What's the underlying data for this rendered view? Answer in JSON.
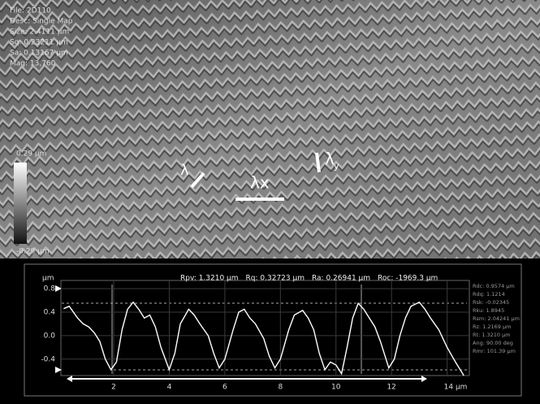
{
  "image": {
    "info_lines": [
      "File: 2D110",
      "Desc: Single Map",
      "Size: 2.4111 µm",
      "Sq: 0.23211 µm",
      "Sa: 0.13167 µm",
      "Mag: 13,760"
    ],
    "colorbar_max": "0.29 µm",
    "colorbar_min": "-0.29 µm",
    "annotations": {
      "lambda": "λ",
      "lambda_x": "λx",
      "lambda_y": "λ",
      "lambda_y_sub": "y"
    }
  },
  "chart_data": {
    "type": "line",
    "y_unit": "µm",
    "header": [
      "Rpv: 1.3210 µm",
      "Rq: 0.32723 µm",
      "Ra: 0.26941 µm",
      "Roc: -1969.3 µm"
    ],
    "stats": [
      "Rdc: 0.9574 µm",
      "Rdq: 1.1214",
      "Rsk: -0.02345",
      "Rku: 1.8945",
      "Rsm: 2.04241 µm",
      "Rz: 1.2169 µm",
      "Rt: 1.3210 µm",
      "Ang: 90.00 deg",
      "Rmr: 101.39 µm"
    ],
    "x": [
      0.2,
      0.4,
      0.7,
      0.9,
      1.1,
      1.3,
      1.5,
      1.7,
      1.9,
      2.1,
      2.3,
      2.5,
      2.7,
      2.9,
      3.1,
      3.3,
      3.5,
      3.7,
      4.0,
      4.2,
      4.4,
      4.7,
      4.9,
      5.1,
      5.4,
      5.6,
      5.8,
      6.0,
      6.3,
      6.5,
      6.7,
      6.9,
      7.1,
      7.4,
      7.6,
      7.8,
      8.0,
      8.3,
      8.5,
      8.8,
      9.0,
      9.2,
      9.4,
      9.6,
      9.8,
      10.0,
      10.2,
      10.4,
      10.6,
      10.8,
      11.0,
      11.2,
      11.4,
      11.6,
      11.9,
      12.1,
      12.3,
      12.5,
      12.7,
      13.0,
      13.2,
      13.4,
      13.7,
      14.0,
      14.3,
      14.6
    ],
    "series": [
      {
        "color": "#ffffff",
        "values": [
          0.46,
          0.5,
          0.3,
          0.2,
          0.15,
          0.05,
          -0.1,
          -0.4,
          -0.58,
          -0.45,
          0.1,
          0.45,
          0.57,
          0.45,
          0.3,
          0.35,
          0.15,
          -0.2,
          -0.58,
          -0.3,
          0.2,
          0.45,
          0.35,
          0.2,
          0,
          -0.3,
          -0.55,
          -0.4,
          0.1,
          0.4,
          0.45,
          0.3,
          0.2,
          -0.05,
          -0.35,
          -0.55,
          -0.4,
          0.1,
          0.35,
          0.43,
          0.3,
          0.1,
          -0.3,
          -0.58,
          -0.45,
          -0.5,
          -0.65,
          -0.2,
          0.3,
          0.55,
          0.45,
          0.3,
          0.15,
          -0.1,
          -0.55,
          -0.4,
          0,
          0.3,
          0.5,
          0.57,
          0.45,
          0.3,
          0.1,
          -0.2,
          -0.45,
          -0.68
        ]
      }
    ],
    "xlim": [
      0.1,
      14.8
    ],
    "ylim": [
      -0.68,
      0.94
    ],
    "xticks": [
      2,
      4,
      6,
      8,
      10,
      12,
      {
        "value": 14,
        "label": "14 µm"
      }
    ],
    "yticks": [
      0.8,
      0.4,
      {
        "value": 0,
        "label": "0.0"
      },
      -0.4
    ],
    "grid": true
  }
}
